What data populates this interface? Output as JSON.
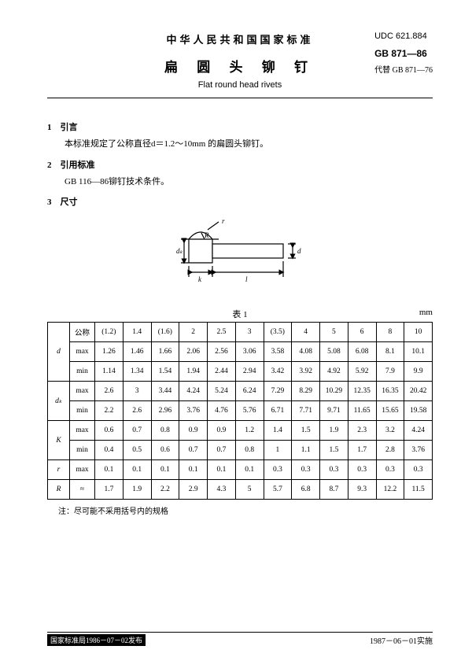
{
  "header": {
    "country": "中华人民共和国国家标准",
    "title_cn": "扁 圆 头 铆 钉",
    "title_en": "Flat round head rivets",
    "udc": "UDC 621.884",
    "gb": "GB 871—86",
    "replace": "代替 GB 871—76"
  },
  "sections": {
    "s1_title": "1　引言",
    "s1_body": "本标准规定了公称直径d＝1.2～10mm 的扁圆头铆钉。",
    "s2_title": "2　引用标准",
    "s2_body": "GB 116—86铆钉技术条件。",
    "s3_title": "3　尺寸"
  },
  "figure": {
    "labels": {
      "r": "r",
      "R": "R",
      "dk": "dₖ",
      "d": "d",
      "k": "k",
      "l": "l"
    }
  },
  "table": {
    "caption": "表 1",
    "unit": "mm",
    "head_col1": "",
    "head_col2": "公称",
    "nominal": [
      "(1.2)",
      "1.4",
      "(1.6)",
      "2",
      "2.5",
      "3",
      "(3.5)",
      "4",
      "5",
      "6",
      "8",
      "10"
    ],
    "rows": [
      {
        "sym": "d",
        "sub": "max",
        "vals": [
          "1.26",
          "1.46",
          "1.66",
          "2.06",
          "2.56",
          "3.06",
          "3.58",
          "4.08",
          "5.08",
          "6.08",
          "8.1",
          "10.1"
        ]
      },
      {
        "sym": "",
        "sub": "min",
        "vals": [
          "1.14",
          "1.34",
          "1.54",
          "1.94",
          "2.44",
          "2.94",
          "3.42",
          "3.92",
          "4.92",
          "5.92",
          "7.9",
          "9.9"
        ]
      },
      {
        "sym": "dₖ",
        "sub": "max",
        "vals": [
          "2.6",
          "3",
          "3.44",
          "4.24",
          "5.24",
          "6.24",
          "7.29",
          "8.29",
          "10.29",
          "12.35",
          "16.35",
          "20.42"
        ]
      },
      {
        "sym": "",
        "sub": "min",
        "vals": [
          "2.2",
          "2.6",
          "2.96",
          "3.76",
          "4.76",
          "5.76",
          "6.71",
          "7.71",
          "9.71",
          "11.65",
          "15.65",
          "19.58"
        ]
      },
      {
        "sym": "K",
        "sub": "max",
        "vals": [
          "0.6",
          "0.7",
          "0.8",
          "0.9",
          "0.9",
          "1.2",
          "1.4",
          "1.5",
          "1.9",
          "2.3",
          "3.2",
          "4.24"
        ]
      },
      {
        "sym": "",
        "sub": "min",
        "vals": [
          "0.4",
          "0.5",
          "0.6",
          "0.7",
          "0.7",
          "0.8",
          "1",
          "1.1",
          "1.5",
          "1.7",
          "2.8",
          "3.76"
        ]
      },
      {
        "sym": "r",
        "sub": "max",
        "vals": [
          "0.1",
          "0.1",
          "0.1",
          "0.1",
          "0.1",
          "0.1",
          "0.3",
          "0.3",
          "0.3",
          "0.3",
          "0.3",
          "0.3"
        ]
      },
      {
        "sym": "R",
        "sub": "≈",
        "vals": [
          "1.7",
          "1.9",
          "2.2",
          "2.9",
          "4.3",
          "5",
          "5.7",
          "6.8",
          "8.7",
          "9.3",
          "12.2",
          "11.5"
        ]
      }
    ],
    "note": "注：尽可能不采用括号内的规格"
  },
  "footer": {
    "left": "国家标准局1986－07－02发布",
    "right": "1987－06－01实施"
  }
}
